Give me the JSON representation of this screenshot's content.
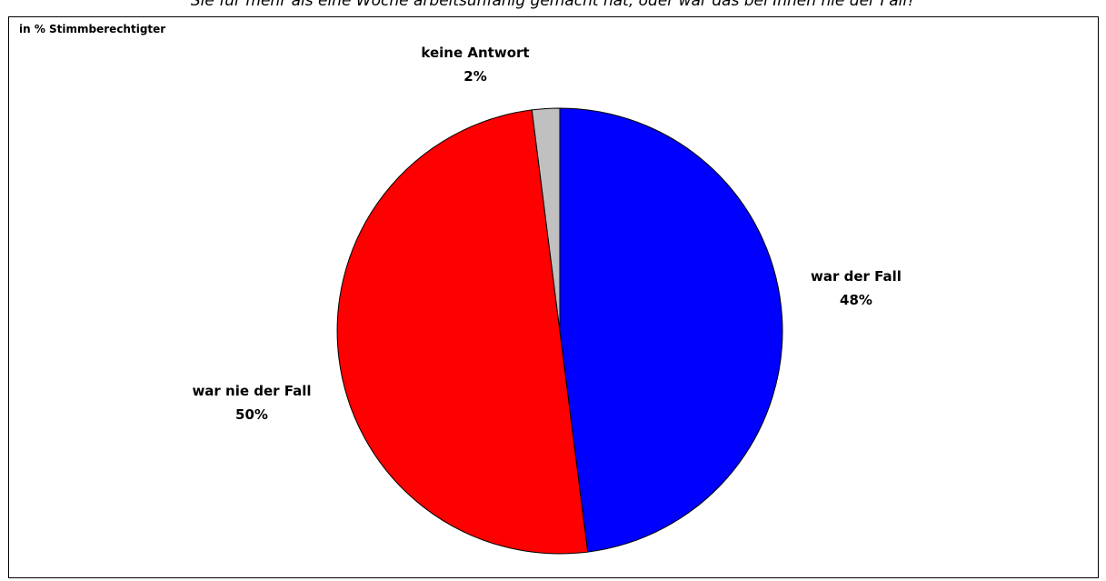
{
  "header": {
    "question_fragment": "Sie für mehr als eine Woche arbeitsunfähig gemacht hat, oder war das bei Ihnen nie der Fall?"
  },
  "chart": {
    "unit_label": "in % Stimmberechtigter"
  },
  "chart_data": {
    "type": "pie",
    "title": "",
    "unit": "in % Stimmberechtigter",
    "start_angle_deg": 0,
    "direction": "clockwise",
    "slices": [
      {
        "label": "war der Fall",
        "value": 48,
        "value_label": "48%",
        "color": "#0000FF"
      },
      {
        "label": "war nie der Fall",
        "value": 50,
        "value_label": "50%",
        "color": "#FF0000"
      },
      {
        "label": "keine Antwort",
        "value": 2,
        "value_label": "2%",
        "color": "#C0C0C0"
      }
    ]
  }
}
